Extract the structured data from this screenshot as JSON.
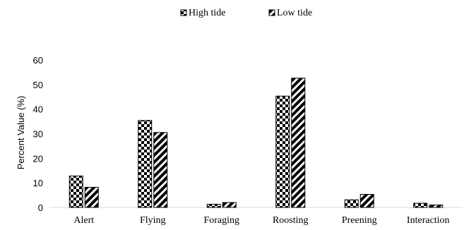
{
  "chart_data": {
    "type": "bar",
    "categories": [
      "Alert",
      "Flying",
      "Foraging",
      "Roosting",
      "Preening",
      "Interaction"
    ],
    "series": [
      {
        "name": "High tide",
        "values": [
          12.8,
          35.4,
          1.3,
          45.3,
          3.1,
          1.7
        ],
        "pattern": "checkerboard"
      },
      {
        "name": "Low tide",
        "values": [
          8.2,
          30.5,
          2.0,
          52.6,
          5.3,
          1.0
        ],
        "pattern": "diagonal-stripes"
      }
    ],
    "ylabel": "Percent Value (%)",
    "xlabel": "",
    "ylim": [
      0,
      60
    ],
    "yticks": [
      "0",
      "10",
      "20",
      "30",
      "40",
      "50",
      "60"
    ],
    "legend_position": "top-center",
    "grid": false,
    "colors": {
      "fill": "#000000",
      "background": "#ffffff",
      "axis": "#d9d9d9"
    }
  }
}
